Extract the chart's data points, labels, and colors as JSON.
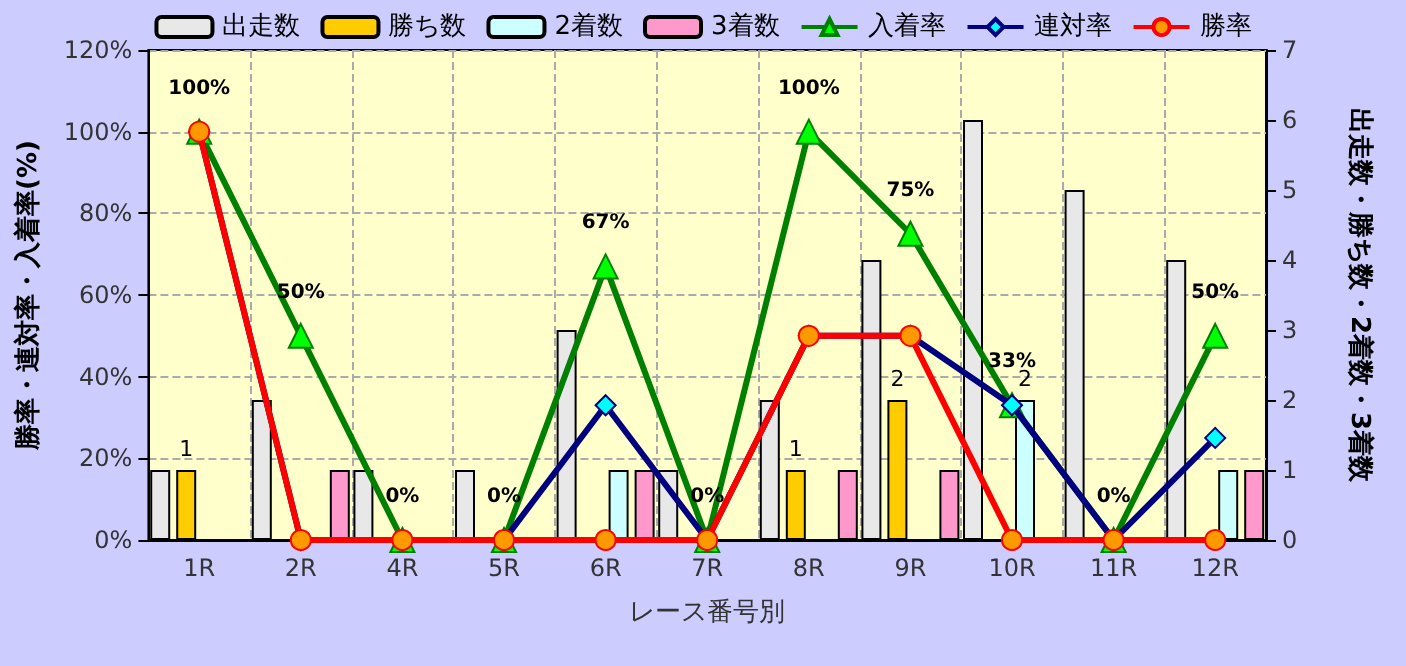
{
  "chart_data": {
    "type": "bar",
    "xlabel": "レース番号別",
    "ylabel": "勝率・連対率・入着率(%)",
    "y2label": "出走数・勝ち数・2着数・3着数",
    "categories": [
      "1R",
      "2R",
      "4R",
      "5R",
      "6R",
      "7R",
      "8R",
      "9R",
      "10R",
      "11R",
      "12R"
    ],
    "series": [
      {
        "name": "出走数",
        "axis": "y2",
        "color": "#e8e8e8",
        "values": [
          1,
          2,
          1,
          1,
          3,
          1,
          2,
          4,
          6,
          5,
          4
        ]
      },
      {
        "name": "勝ち数",
        "axis": "y2",
        "color": "#ffcc00",
        "values": [
          1,
          0,
          0,
          0,
          0,
          0,
          1,
          2,
          0,
          0,
          0
        ],
        "value_labels": [
          "1",
          null,
          null,
          null,
          null,
          null,
          "1",
          "2",
          null,
          null,
          null
        ]
      },
      {
        "name": "2着数",
        "axis": "y2",
        "color": "#ccffff",
        "values": [
          0,
          0,
          0,
          0,
          1,
          0,
          0,
          0,
          2,
          0,
          1
        ],
        "value_labels": [
          null,
          null,
          null,
          null,
          null,
          null,
          null,
          null,
          "2",
          null,
          null
        ]
      },
      {
        "name": "3着数",
        "axis": "y2",
        "color": "#ff99cc",
        "values": [
          0,
          1,
          0,
          0,
          1,
          0,
          1,
          1,
          0,
          0,
          1
        ]
      },
      {
        "name": "入着率",
        "type": "line",
        "color": "#008000",
        "marker": "triangle",
        "values": [
          100,
          50,
          0,
          0,
          67,
          0,
          100,
          75,
          33,
          0,
          50
        ],
        "value_labels": [
          "100%",
          "50%",
          "0%",
          "0%",
          "67%",
          "0%",
          "100%",
          "75%",
          "33%",
          "0%",
          "50%"
        ]
      },
      {
        "name": "連対率",
        "type": "line",
        "color": "#000080",
        "marker": "diamond",
        "values": [
          100,
          0,
          0,
          0,
          33,
          0,
          50,
          50,
          33,
          0,
          25
        ]
      },
      {
        "name": "勝率",
        "type": "line",
        "color": "#ff0000",
        "marker": "circle",
        "values": [
          100,
          0,
          0,
          0,
          0,
          0,
          50,
          50,
          0,
          0,
          0
        ]
      }
    ],
    "ylim": [
      0,
      120
    ],
    "yticks": [
      {
        "value": 0,
        "label": "0%"
      },
      {
        "value": 20,
        "label": "20%"
      },
      {
        "value": 40,
        "label": "40%"
      },
      {
        "value": 60,
        "label": "60%"
      },
      {
        "value": 80,
        "label": "80%"
      },
      {
        "value": 100,
        "label": "100%"
      },
      {
        "value": 120,
        "label": "120%"
      }
    ],
    "y2lim": [
      0,
      7
    ],
    "y2ticks": [
      0,
      1,
      2,
      3,
      4,
      5,
      6,
      7
    ],
    "grid": true,
    "legend": "top"
  }
}
